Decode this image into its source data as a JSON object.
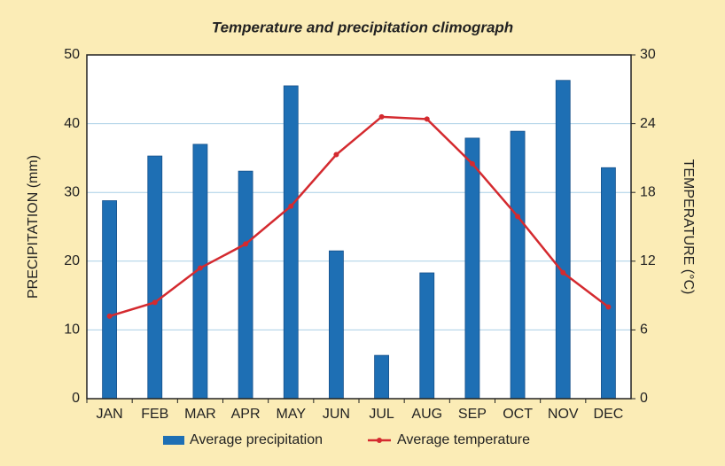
{
  "chart_data": {
    "type": "bar-line",
    "title": "Temperature and precipitation climograph",
    "ylabel": "PRECIPITATION (mm)",
    "y2label": "TEMPERATURE (°C)",
    "categories": [
      "JAN",
      "FEB",
      "MAR",
      "APR",
      "MAY",
      "JUN",
      "JUL",
      "AUG",
      "SEP",
      "OCT",
      "NOV",
      "DEC"
    ],
    "series": [
      {
        "name": "Average precipitation",
        "type": "bar",
        "color": "#1e6fb4",
        "values": [
          28.8,
          35.3,
          37.0,
          33.1,
          45.5,
          21.5,
          6.3,
          18.3,
          37.9,
          38.9,
          46.3,
          33.6
        ]
      },
      {
        "name": "Average temperature",
        "type": "line",
        "axis": "y2",
        "color": "#d42a2f",
        "values": [
          7.2,
          8.4,
          11.4,
          13.5,
          16.8,
          21.3,
          24.6,
          24.4,
          20.5,
          15.9,
          11.0,
          8.0
        ]
      }
    ],
    "ylim": [
      0,
      50
    ],
    "yticks": [
      0,
      10,
      20,
      30,
      40,
      50
    ],
    "y2lim": [
      0,
      30
    ],
    "y2ticks": [
      0,
      6,
      12,
      18,
      24,
      30
    ],
    "grid": true,
    "legend": "bottom"
  }
}
